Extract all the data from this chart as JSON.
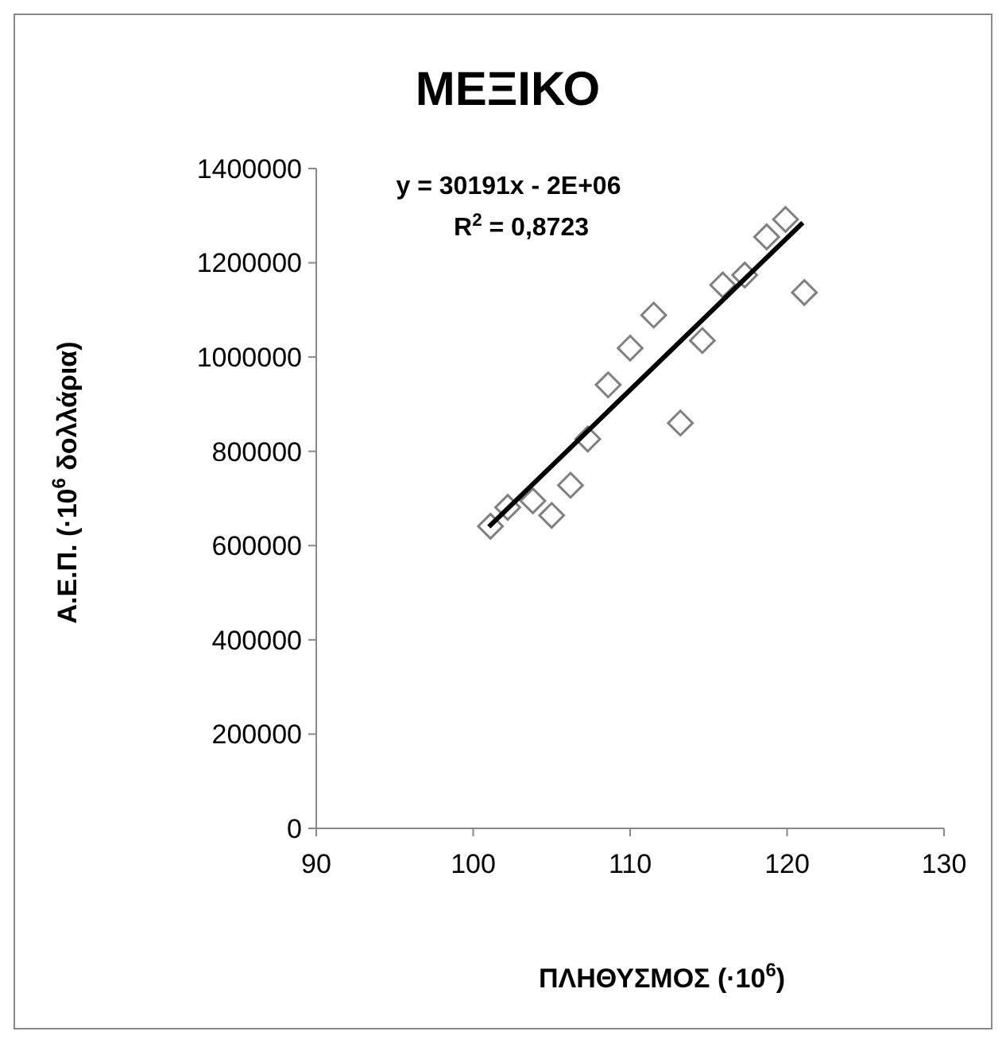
{
  "chart_data": {
    "type": "scatter",
    "title": "ΜΕΞΙΚΟ",
    "xlabel": "ΠΛΗΘΥΣΜΟΣ (·10$^{6}$)",
    "ylabel": "Α.Ε.Π.  (·10$^{6}$ δολλάρια)",
    "xlim": [
      90,
      130
    ],
    "xticks": [
      90,
      100,
      110,
      120,
      130
    ],
    "ylim": [
      0,
      1400000
    ],
    "yticks": [
      0,
      200000,
      400000,
      600000,
      800000,
      1000000,
      1200000,
      1400000
    ],
    "grid": false,
    "marker": "diamond",
    "annotations": [
      "y = 30191x - 2E+06",
      "R$^{2}$ = 0,8723"
    ],
    "series": [
      {
        "color": "#808080",
        "x": [
          101.1,
          102.2,
          103.8,
          105,
          106.2,
          107.3,
          108.6,
          110,
          111.5,
          113.2,
          114.6,
          115.9,
          117.3,
          118.7,
          119.9,
          121.1
        ],
        "values": [
          641000,
          681000,
          695000,
          664000,
          728000,
          826000,
          941000,
          1019000,
          1089000,
          860000,
          1035000,
          1153000,
          1174000,
          1255000,
          1292000,
          1137000
        ]
      },
      {
        "type": "line",
        "color": "#000000",
        "line_style": "solid",
        "marker": "none",
        "x": [
          101,
          121
        ],
        "values": [
          640000,
          1285000
        ]
      }
    ]
  }
}
